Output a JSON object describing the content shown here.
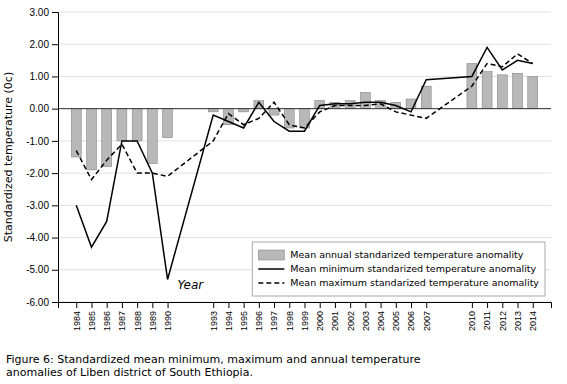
{
  "chart_data": {
    "type": "bar",
    "x": [
      1984,
      1985,
      1986,
      1987,
      1988,
      1989,
      1990,
      1993,
      1994,
      1995,
      1996,
      1997,
      1998,
      1999,
      2000,
      2001,
      2002,
      2003,
      2004,
      2005,
      2006,
      2007,
      2010,
      2011,
      2012,
      2013,
      2014
    ],
    "xlim": [
      1982.8,
      2015.2
    ],
    "xticks": [
      1984,
      1985,
      1986,
      1987,
      1988,
      1989,
      1990,
      1993,
      1994,
      1995,
      1996,
      1997,
      1998,
      1999,
      2000,
      2001,
      2002,
      2003,
      2004,
      2005,
      2006,
      2007,
      2010,
      2011,
      2012,
      2013,
      2014
    ],
    "ylim": [
      -6.0,
      3.0
    ],
    "yticks": [
      {
        "value": -6.0,
        "label": "-6.00"
      },
      {
        "value": -5.0,
        "label": "-5.00"
      },
      {
        "value": -4.0,
        "label": "-4.00"
      },
      {
        "value": -3.0,
        "label": "-3.00"
      },
      {
        "value": -2.0,
        "label": "-2.00"
      },
      {
        "value": -1.0,
        "label": "-1.00"
      },
      {
        "value": 0.0,
        "label": "0.00"
      },
      {
        "value": 1.0,
        "label": "1.00"
      },
      {
        "value": 2.0,
        "label": "2.00"
      },
      {
        "value": 3.0,
        "label": "3.00"
      }
    ],
    "y_label": "Standardized temperature (0c)",
    "series": [
      {
        "name": "Mean annual standarized temperature anomality",
        "type": "bar",
        "color": "#b8b8b8",
        "values": [
          -1.5,
          -1.9,
          -1.8,
          -1.0,
          -1.0,
          -1.7,
          -0.9,
          -0.1,
          -0.5,
          -0.1,
          0.25,
          -0.2,
          -0.6,
          -0.6,
          0.25,
          0.2,
          0.25,
          0.5,
          0.25,
          0.2,
          0.3,
          0.7,
          1.4,
          1.15,
          1.05,
          1.1,
          1.0
        ]
      },
      {
        "name": "Mean minimum  standarized temperature anomality",
        "type": "line",
        "color": "#000000",
        "line_style": "solid",
        "values": [
          -3.0,
          -4.3,
          -3.5,
          -1.0,
          -1.0,
          -2.0,
          -5.3,
          -0.2,
          -0.4,
          -0.6,
          0.2,
          -0.4,
          -0.7,
          -0.7,
          0.1,
          0.15,
          0.15,
          0.2,
          0.2,
          0.1,
          -0.1,
          0.9,
          1.0,
          1.9,
          1.2,
          1.5,
          1.4
        ]
      },
      {
        "name": "Mean maximum standarized temperature anomality",
        "type": "line",
        "color": "#000000",
        "line_style": "dashed",
        "values": [
          -1.3,
          -2.2,
          -1.6,
          -1.1,
          -2.0,
          -2.0,
          -2.1,
          -1.0,
          -0.15,
          -0.5,
          -0.3,
          0.2,
          -0.5,
          -0.6,
          -0.1,
          0.1,
          0.1,
          0.1,
          0.15,
          -0.1,
          -0.2,
          -0.3,
          0.7,
          1.4,
          1.3,
          1.7,
          1.4
        ]
      }
    ],
    "annotations": [
      {
        "text": "Year",
        "x": 1991.5,
        "y": -5.6
      }
    ],
    "caption": "Figure 6: Standardized mean minimum, maximum and annual temperature\nanomalies of Liben district of South Ethiopia.",
    "grid": true,
    "legend": "lower right"
  }
}
